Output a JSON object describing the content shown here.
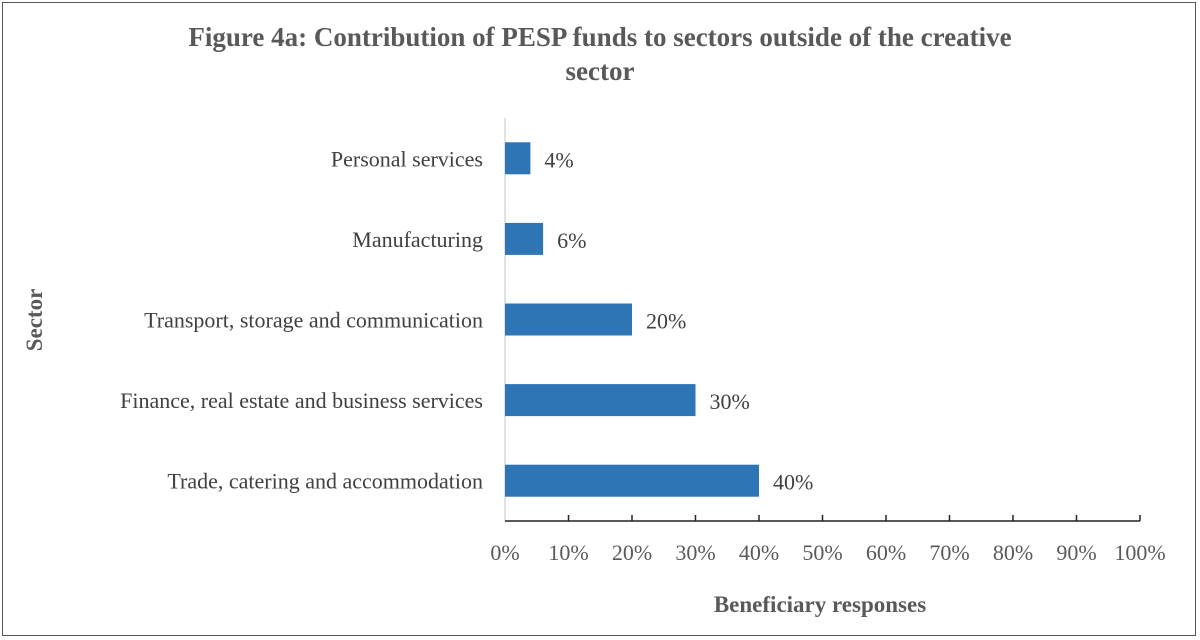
{
  "chart_data": {
    "type": "bar",
    "orientation": "horizontal",
    "title": "Figure 4a: Contribution of PESP funds to sectors outside of the creative sector",
    "title_lines": [
      "Figure 4a: Contribution of PESP funds to sectors outside of the creative",
      "sector"
    ],
    "xlabel": "Beneficiary responses",
    "ylabel": "Sector",
    "categories": [
      "Personal services",
      "Manufacturing",
      "Transport, storage and communication",
      "Finance, real estate and business services",
      "Trade, catering and accommodation"
    ],
    "values": [
      4,
      6,
      20,
      30,
      40
    ],
    "data_labels": [
      "4%",
      "6%",
      "20%",
      "30%",
      "40%"
    ],
    "xlim": [
      0,
      100
    ],
    "xticks": [
      "0%",
      "10%",
      "20%",
      "30%",
      "40%",
      "50%",
      "60%",
      "70%",
      "80%",
      "90%",
      "100%"
    ],
    "bar_color": "#2E75B6",
    "grid": false
  }
}
